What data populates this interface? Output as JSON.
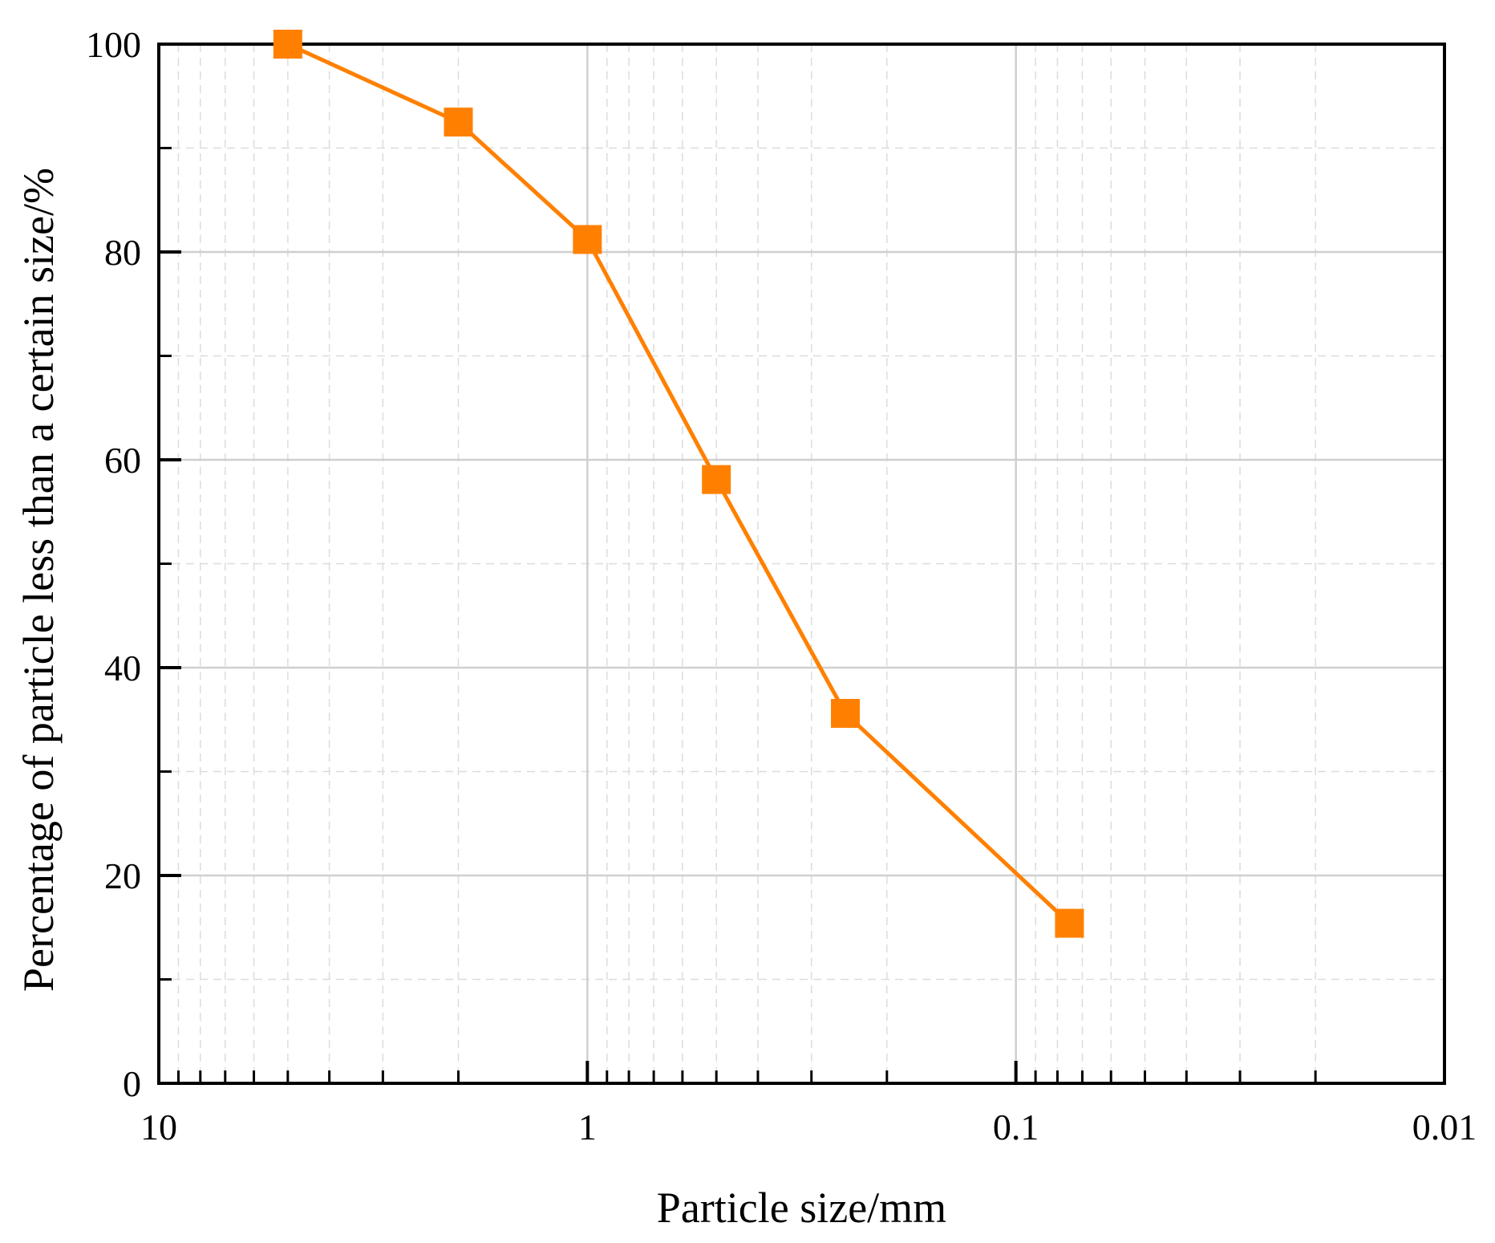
{
  "chart_data": {
    "type": "line",
    "title": "",
    "xlabel": "Particle size/mm",
    "ylabel": "Percentage of particle  less than a certain size/%",
    "x_scale": "log",
    "x_reversed": true,
    "xlim": [
      10,
      0.01
    ],
    "ylim": [
      0,
      100
    ],
    "x_ticks": [
      {
        "value": 10,
        "label": "10"
      },
      {
        "value": 1,
        "label": "1"
      },
      {
        "value": 0.1,
        "label": "0.1"
      },
      {
        "value": 0.01,
        "label": "0.01"
      }
    ],
    "y_ticks": [
      {
        "value": 0,
        "label": "0"
      },
      {
        "value": 20,
        "label": "20"
      },
      {
        "value": 40,
        "label": "40"
      },
      {
        "value": 60,
        "label": "60"
      },
      {
        "value": 80,
        "label": "80"
      },
      {
        "value": 100,
        "label": "100"
      }
    ],
    "grid": true,
    "legend": false,
    "series": [
      {
        "color": "#FF8000",
        "marker": "square",
        "x": [
          5,
          2,
          1,
          0.5,
          0.25,
          0.075
        ],
        "y": [
          100,
          92.5,
          81.2,
          58.1,
          35.6,
          15.4
        ]
      }
    ]
  }
}
